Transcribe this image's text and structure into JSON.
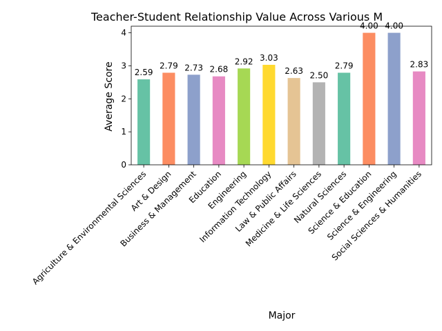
{
  "chart_data": {
    "type": "bar",
    "title": "Teacher-Student Relationship Value Across Various M",
    "xlabel": "Major",
    "ylabel": "Average Score",
    "ylim": [
      0,
      4.2
    ],
    "yticks": [
      0,
      1,
      2,
      3,
      4
    ],
    "grid": false,
    "categories": [
      "Agriculture & Environmental Sciences",
      "Art & Design",
      "Business & Management",
      "Education",
      "Engineering",
      "Information Technology",
      "Law & Public Affairs",
      "Medicine & Life Sciences",
      "Natural Sciences",
      "Science & Education",
      "Science & Engineering",
      "Social Sciences & Humanities"
    ],
    "values": [
      2.59,
      2.79,
      2.73,
      2.68,
      2.92,
      3.03,
      2.63,
      2.5,
      2.79,
      4.0,
      4.0,
      2.83
    ],
    "value_labels": [
      "2.59",
      "2.79",
      "2.73",
      "2.68",
      "2.92",
      "3.03",
      "2.63",
      "2.50",
      "2.79",
      "4.00",
      "4.00",
      "2.83"
    ],
    "colors": [
      "#66c2a5",
      "#fc8d62",
      "#8da0cb",
      "#e78ac3",
      "#a6d854",
      "#ffd92f",
      "#e5c494",
      "#b3b3b3",
      "#66c2a5",
      "#fc8d62",
      "#8da0cb",
      "#e78ac3"
    ]
  }
}
